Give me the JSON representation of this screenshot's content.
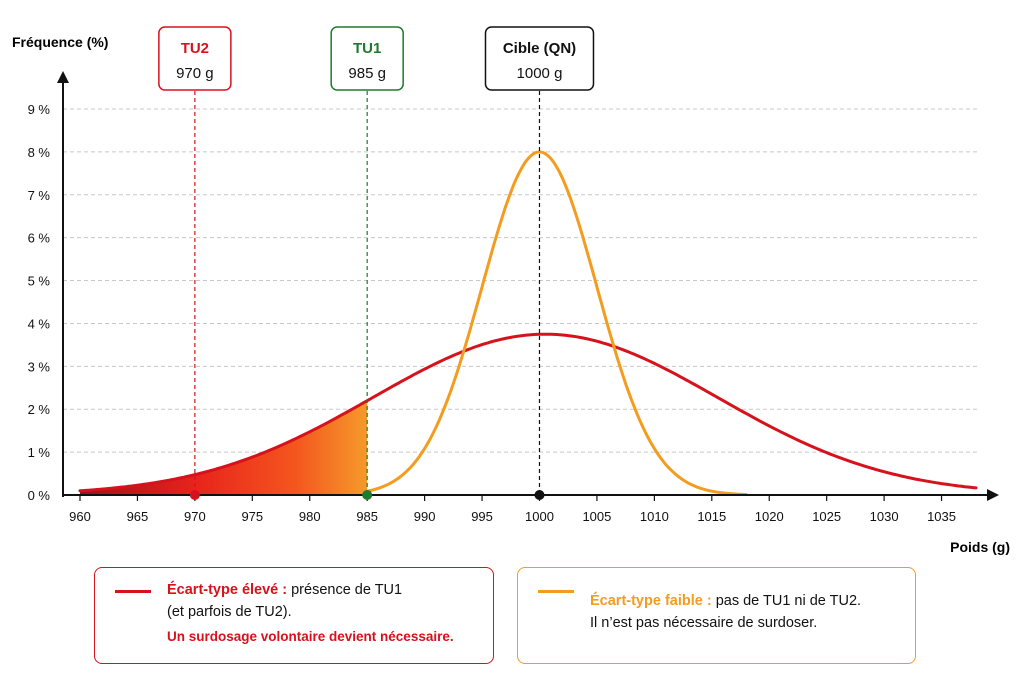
{
  "colors": {
    "red": "#d6121c",
    "orange": "#f39c1f",
    "green": "#1e7a2c",
    "black": "#111111",
    "grid": "#c8c8c8"
  },
  "chart_data": {
    "type": "line",
    "ylabel": "Fréquence (%)",
    "xlabel": "Poids (g)",
    "xlim": [
      958,
      1038
    ],
    "ylim": [
      0,
      9
    ],
    "x_ticks": [
      960,
      965,
      970,
      975,
      980,
      985,
      990,
      995,
      1000,
      1005,
      1010,
      1015,
      1020,
      1025,
      1030,
      1035
    ],
    "y_ticks": [
      0,
      1,
      2,
      3,
      4,
      5,
      6,
      7,
      8,
      9
    ],
    "y_tick_labels": [
      "0 %",
      "1 %",
      "2 %",
      "3 %",
      "4 %",
      "5 %",
      "6 %",
      "7 %",
      "8 %",
      "9 %"
    ],
    "grid": true,
    "series": [
      {
        "name": "Écart-type élevé",
        "color": "#d6121c",
        "type": "normal",
        "mean": 1000.5,
        "sd": 15,
        "peak": 3.75,
        "x_range": [
          960,
          1038
        ]
      },
      {
        "name": "Écart-type faible",
        "color": "#f39c1f",
        "type": "normal",
        "mean": 1000,
        "sd": 5,
        "peak": 8.0,
        "x_range": [
          985,
          1018
        ]
      }
    ],
    "shaded_region": {
      "from": 960,
      "to": 985,
      "series": "Écart-type élevé"
    },
    "markers": [
      {
        "title": "TU2",
        "value_label": "970 g",
        "x": 970,
        "color": "#d6121c"
      },
      {
        "title": "TU1",
        "value_label": "985 g",
        "x": 985,
        "color": "#1e7a2c"
      },
      {
        "title": "Cible (QN)",
        "value_label": "1000 g",
        "x": 1000,
        "color": "#111111"
      }
    ]
  },
  "legend": {
    "high": {
      "title": "Écart-type élevé :",
      "text1": " présence de TU1",
      "text2": "(et parfois de TU2).",
      "warning": "Un surdosage volontaire devient nécessaire."
    },
    "low": {
      "title": "Écart-type faible :",
      "text1": " pas de TU1 ni de TU2.",
      "text2": "Il n’est pas nécessaire de surdoser."
    }
  }
}
